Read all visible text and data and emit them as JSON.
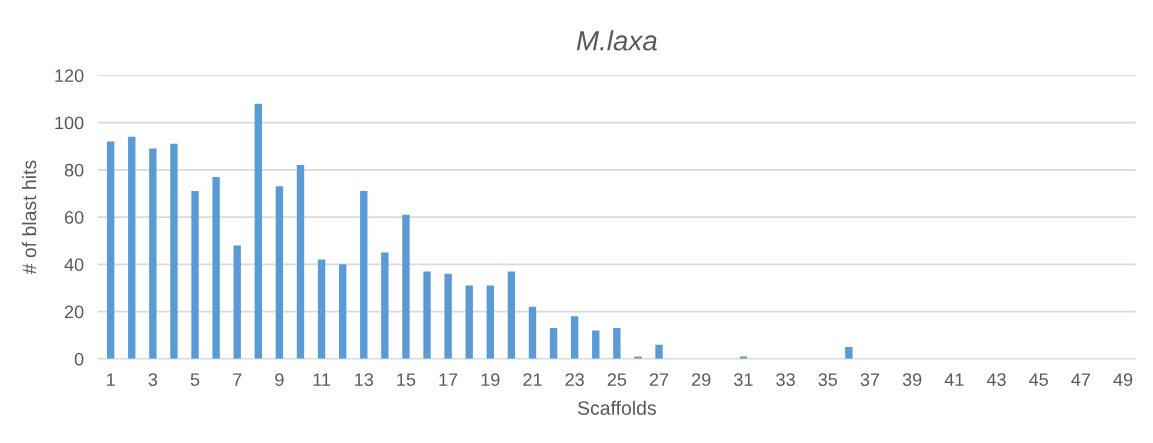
{
  "chart_data": {
    "type": "bar",
    "title": "M.laxa",
    "xlabel": "Scaffolds",
    "ylabel": "# of blast hits",
    "categories": [
      "1",
      null,
      "3",
      null,
      "5",
      null,
      "7",
      null,
      "9",
      null,
      "11",
      null,
      "13",
      null,
      "15",
      null,
      "17",
      null,
      "19",
      null,
      "21",
      null,
      "23",
      null,
      "25",
      null,
      "27",
      null,
      "29",
      null,
      "31",
      null,
      "33",
      null,
      "35",
      null,
      "37",
      null,
      "39",
      null,
      "41",
      null,
      "43",
      null,
      "45",
      null,
      "47",
      null,
      "49"
    ],
    "values": [
      92,
      94,
      89,
      91,
      71,
      77,
      48,
      108,
      73,
      82,
      42,
      40,
      71,
      45,
      61,
      37,
      36,
      31,
      31,
      37,
      22,
      13,
      18,
      12,
      13,
      1,
      6,
      0,
      0,
      0,
      1,
      0,
      0,
      0,
      0,
      5,
      0,
      0,
      0,
      0,
      0,
      0,
      0,
      0,
      0,
      0,
      0,
      0,
      0
    ],
    "color": "#5b9bd5",
    "ylim": [
      0,
      120
    ],
    "yticks": [
      0,
      20,
      40,
      60,
      80,
      100,
      120
    ],
    "grid": "y"
  }
}
